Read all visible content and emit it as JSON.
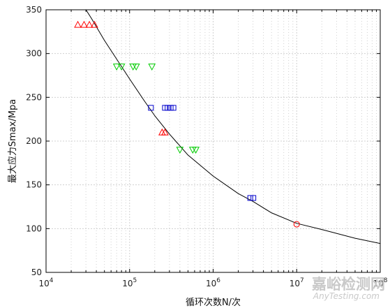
{
  "chart_data": {
    "type": "scatter",
    "xlabel": "循环次数N/次",
    "ylabel": "最大应力Smax/Mpa",
    "xscale": "log",
    "xlim": [
      10000,
      100000000
    ],
    "ylim": [
      50,
      350
    ],
    "grid": true,
    "x_ticks": [
      {
        "value": 10000,
        "base": "10",
        "exp": "4"
      },
      {
        "value": 100000,
        "base": "10",
        "exp": "5"
      },
      {
        "value": 1000000,
        "base": "10",
        "exp": "6"
      },
      {
        "value": 10000000,
        "base": "10",
        "exp": "7"
      },
      {
        "value": 100000000,
        "base": "10",
        "exp": "8"
      }
    ],
    "y_ticks": [
      "50",
      "100",
      "150",
      "200",
      "250",
      "300",
      "350"
    ],
    "series": [
      {
        "marker": "triangle-up",
        "color": "#ff0000",
        "points": [
          [
            24000,
            333
          ],
          [
            28500,
            333
          ],
          [
            33000,
            333
          ],
          [
            38000,
            333
          ],
          [
            245000,
            210
          ],
          [
            265000,
            210
          ]
        ]
      },
      {
        "marker": "triangle-down",
        "color": "#00cc00",
        "points": [
          [
            70000,
            285
          ],
          [
            80000,
            285
          ],
          [
            110000,
            285
          ],
          [
            120000,
            285
          ],
          [
            185000,
            285
          ],
          [
            400000,
            190
          ],
          [
            570000,
            190
          ],
          [
            620000,
            190
          ]
        ]
      },
      {
        "marker": "square",
        "color": "#0000cc",
        "points": [
          [
            180000,
            238
          ],
          [
            265000,
            238
          ],
          [
            285000,
            238
          ],
          [
            310000,
            238
          ],
          [
            335000,
            238
          ],
          [
            2780000,
            135
          ],
          [
            3030000,
            135
          ]
        ]
      },
      {
        "marker": "circle",
        "color": "#ff0000",
        "points": [
          [
            10000000,
            105
          ]
        ]
      }
    ],
    "fit_curve": {
      "color": "#000000",
      "points": [
        [
          25000,
          362
        ],
        [
          35000,
          340
        ],
        [
          50000,
          315
        ],
        [
          100000,
          271
        ],
        [
          150000,
          246
        ],
        [
          200000,
          229
        ],
        [
          300000,
          208
        ],
        [
          500000,
          184
        ],
        [
          1000000,
          160
        ],
        [
          2000000,
          140
        ],
        [
          3000000,
          131
        ],
        [
          5000000,
          118
        ],
        [
          10000000,
          106
        ],
        [
          20000000,
          99
        ],
        [
          50000000,
          89
        ],
        [
          100000000,
          83
        ]
      ]
    }
  },
  "watermark": {
    "main": "嘉峪检测网",
    "sub": "AnyTesting.com"
  }
}
